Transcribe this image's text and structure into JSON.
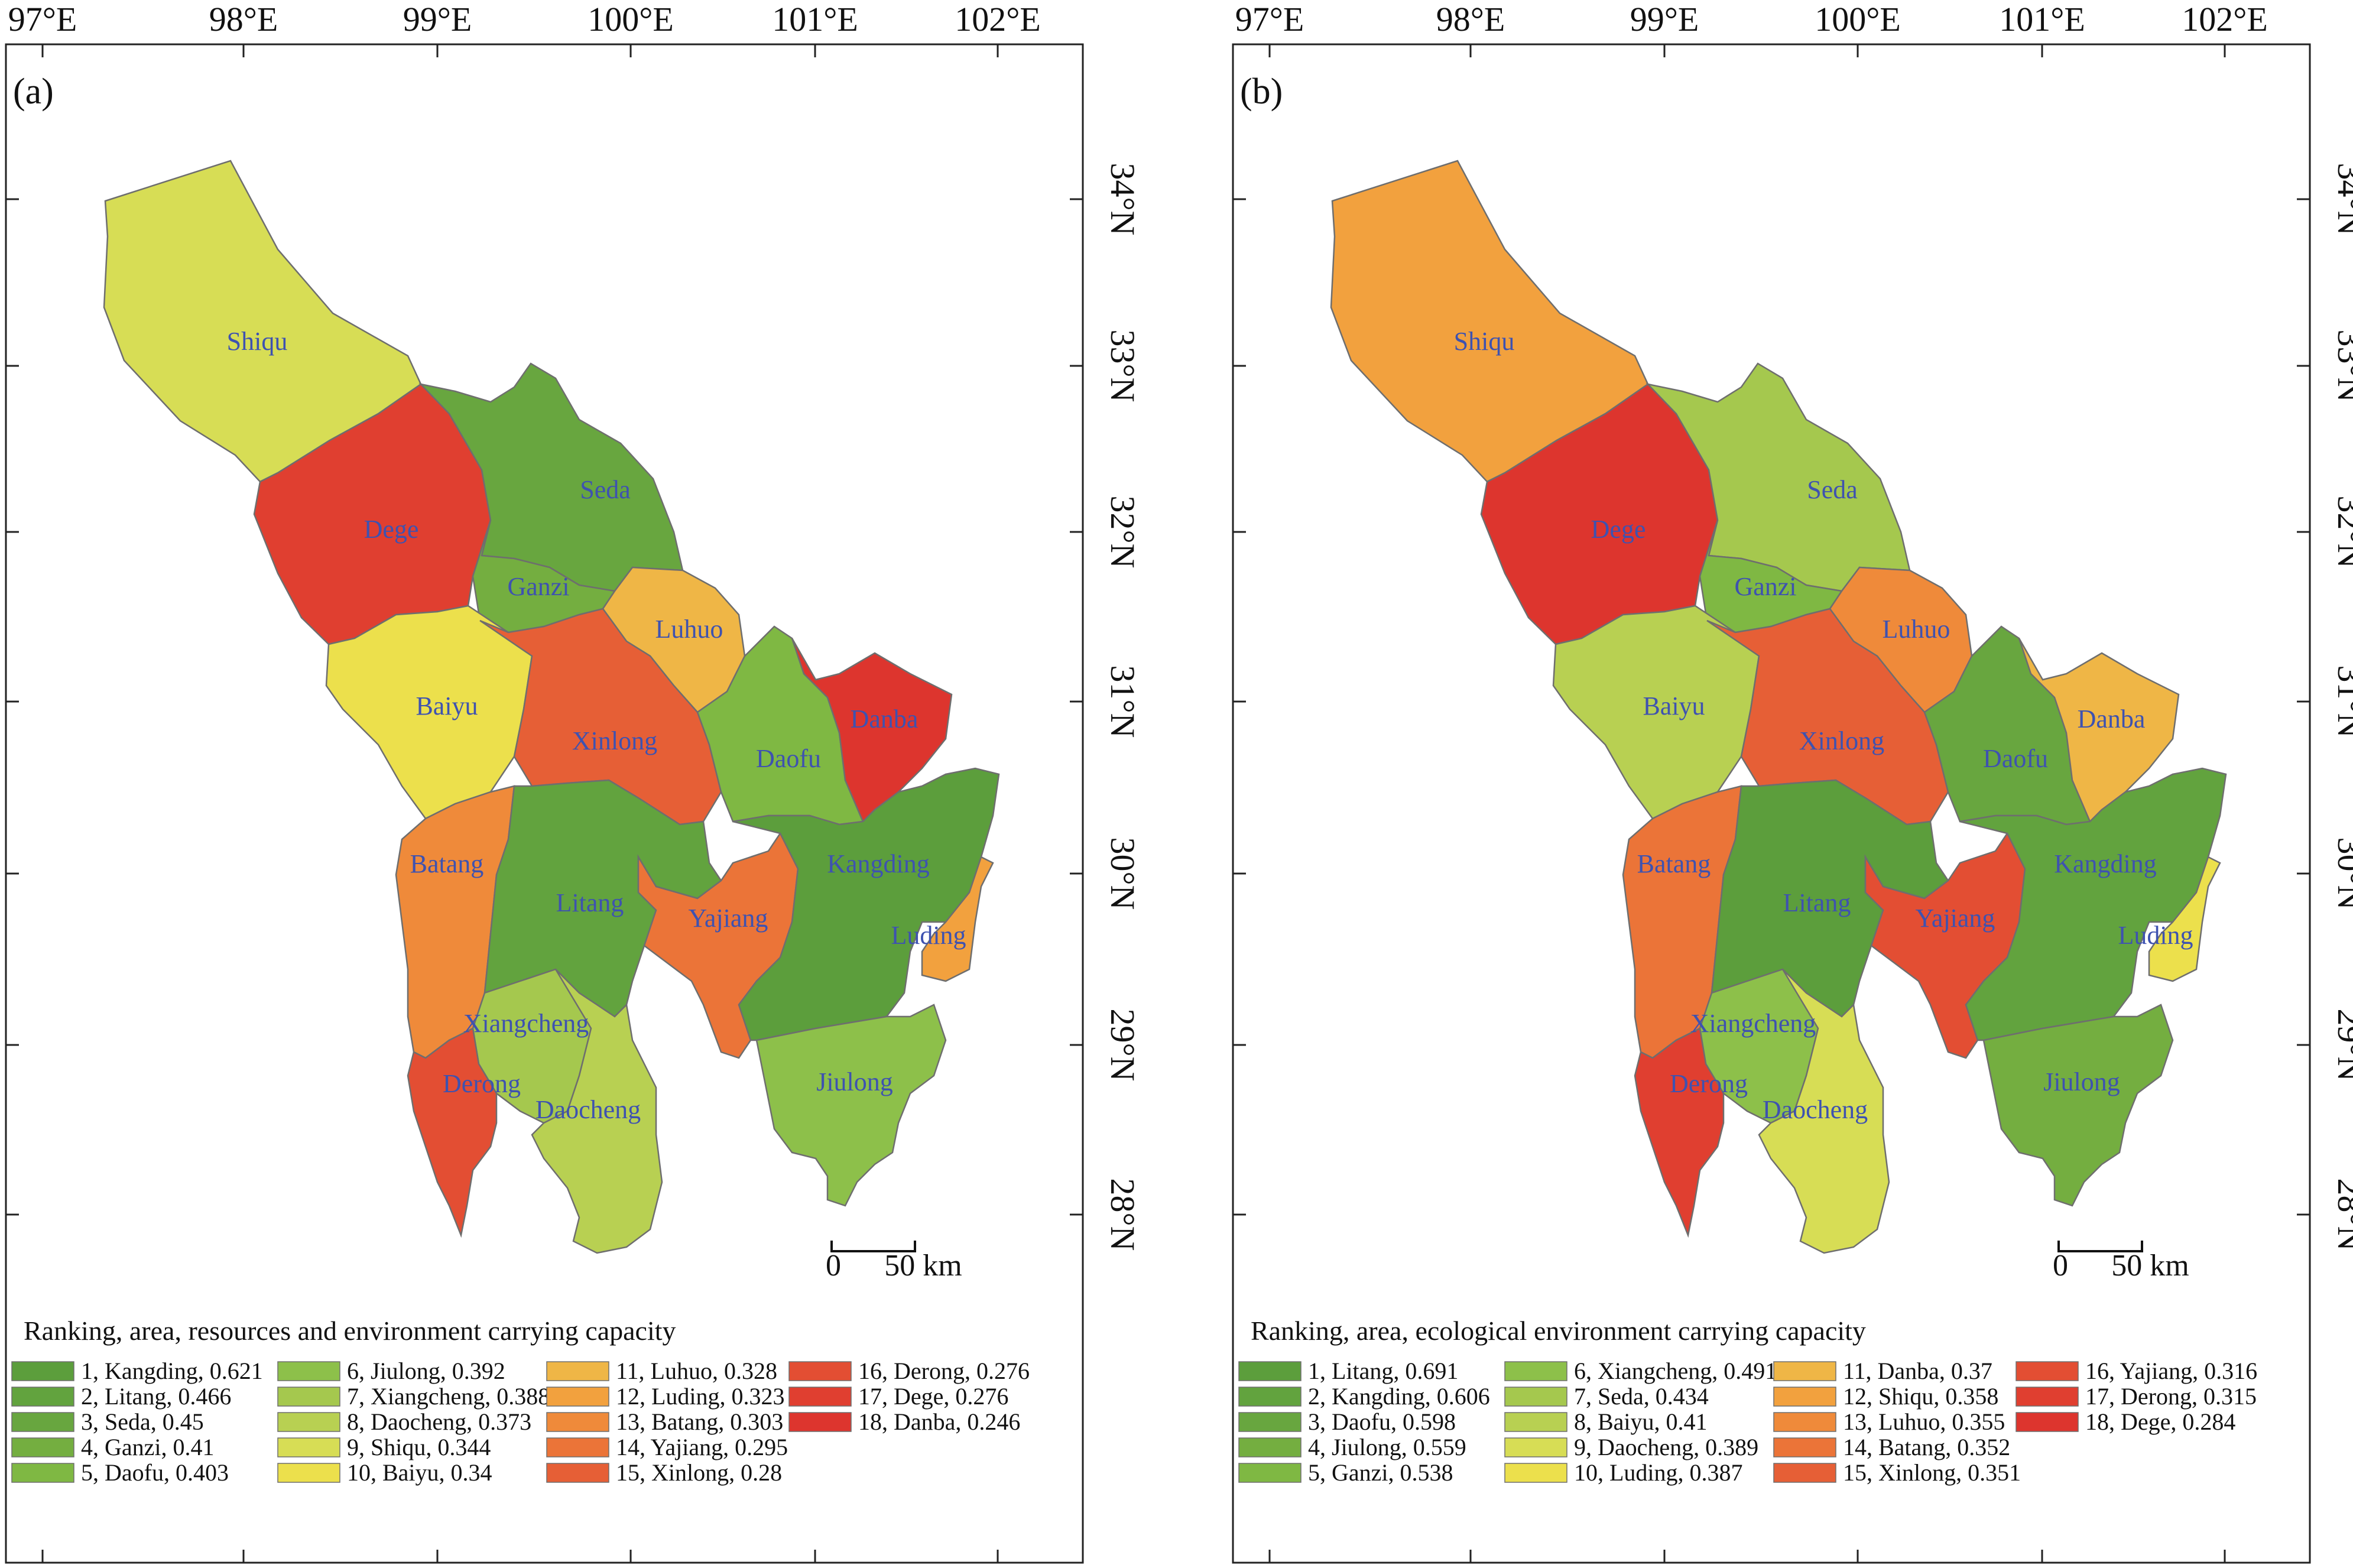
{
  "longitude_ticks": [
    "97°E",
    "98°E",
    "99°E",
    "100°E",
    "101°E",
    "102°E"
  ],
  "latitude_ticks": [
    "34°N",
    "33°N",
    "32°N",
    "31°N",
    "30°N",
    "29°N",
    "28°N"
  ],
  "scale_bar": {
    "start": "0",
    "end": "50 km"
  },
  "colors": {
    "rank_1": "#5c9e3c",
    "rank_2": "#62a33e",
    "rank_3": "#68a63f",
    "rank_4": "#74ae40",
    "rank_5": "#7fb843",
    "rank_6": "#8dc04a",
    "rank_7": "#a5c84e",
    "rank_8": "#b8d052",
    "rank_9": "#d7dd55",
    "rank_10": "#ece04c",
    "rank_11": "#efb646",
    "rank_12": "#f2a13e",
    "rank_13": "#ef8a3a",
    "rank_14": "#eb7438",
    "rank_15": "#e65f36",
    "rank_16": "#e34e33",
    "rank_17": "#e03f30",
    "rank_18": "#dd352e"
  },
  "panels": [
    {
      "label": "(a)",
      "legend_title": "Ranking, area, resources and  environment carrying capacity",
      "legend": [
        {
          "rank": 1,
          "text": "1, Kangding, 0.621"
        },
        {
          "rank": 2,
          "text": "2, Litang, 0.466"
        },
        {
          "rank": 3,
          "text": "3, Seda, 0.45"
        },
        {
          "rank": 4,
          "text": "4, Ganzi, 0.41"
        },
        {
          "rank": 5,
          "text": "5, Daofu, 0.403"
        },
        {
          "rank": 6,
          "text": "6, Jiulong, 0.392"
        },
        {
          "rank": 7,
          "text": "7, Xiangcheng, 0.388"
        },
        {
          "rank": 8,
          "text": "8, Daocheng, 0.373"
        },
        {
          "rank": 9,
          "text": "9, Shiqu, 0.344"
        },
        {
          "rank": 10,
          "text": "10, Baiyu, 0.34"
        },
        {
          "rank": 11,
          "text": "11, Luhuo, 0.328"
        },
        {
          "rank": 12,
          "text": "12, Luding, 0.323"
        },
        {
          "rank": 13,
          "text": "13, Batang, 0.303"
        },
        {
          "rank": 14,
          "text": "14, Yajiang, 0.295"
        },
        {
          "rank": 15,
          "text": "15, Xinlong, 0.28"
        },
        {
          "rank": 16,
          "text": "16, Derong, 0.276"
        },
        {
          "rank": 17,
          "text": "17, Dege, 0.276"
        },
        {
          "rank": 18,
          "text": "18, Danba, 0.246"
        }
      ],
      "regions": {
        "Shiqu": 9,
        "Dege": 17,
        "Seda": 3,
        "Ganzi": 4,
        "Luhuo": 11,
        "Baiyu": 10,
        "Xinlong": 15,
        "Daofu": 5,
        "Danba": 18,
        "Batang": 13,
        "Litang": 2,
        "Yajiang": 14,
        "Kangding": 1,
        "Luding": 12,
        "Xiangcheng": 7,
        "Derong": 16,
        "Daocheng": 8,
        "Jiulong": 6
      }
    },
    {
      "label": "(b)",
      "legend_title": "Ranking, area, ecological environment carrying capacity",
      "legend": [
        {
          "rank": 1,
          "text": "1, Litang, 0.691"
        },
        {
          "rank": 2,
          "text": "2, Kangding, 0.606"
        },
        {
          "rank": 3,
          "text": "3, Daofu, 0.598"
        },
        {
          "rank": 4,
          "text": "4, Jiulong, 0.559"
        },
        {
          "rank": 5,
          "text": "5, Ganzi, 0.538"
        },
        {
          "rank": 6,
          "text": "6, Xiangcheng, 0.491"
        },
        {
          "rank": 7,
          "text": "7, Seda, 0.434"
        },
        {
          "rank": 8,
          "text": "8, Baiyu, 0.41"
        },
        {
          "rank": 9,
          "text": "9, Daocheng, 0.389"
        },
        {
          "rank": 10,
          "text": "10, Luding, 0.387"
        },
        {
          "rank": 11,
          "text": "11, Danba, 0.37"
        },
        {
          "rank": 12,
          "text": "12, Shiqu, 0.358"
        },
        {
          "rank": 13,
          "text": "13, Luhuo, 0.355"
        },
        {
          "rank": 14,
          "text": "14, Batang, 0.352"
        },
        {
          "rank": 15,
          "text": "15, Xinlong, 0.351"
        },
        {
          "rank": 16,
          "text": "16, Yajiang, 0.316"
        },
        {
          "rank": 17,
          "text": "17, Derong, 0.315"
        },
        {
          "rank": 18,
          "text": "18, Dege, 0.284"
        }
      ],
      "regions": {
        "Litang": 1,
        "Kangding": 2,
        "Daofu": 3,
        "Jiulong": 4,
        "Ganzi": 5,
        "Xiangcheng": 6,
        "Seda": 7,
        "Baiyu": 8,
        "Daocheng": 9,
        "Luding": 10,
        "Danba": 11,
        "Shiqu": 12,
        "Luhuo": 13,
        "Batang": 14,
        "Xinlong": 15,
        "Yajiang": 16,
        "Derong": 17,
        "Dege": 18
      }
    }
  ]
}
